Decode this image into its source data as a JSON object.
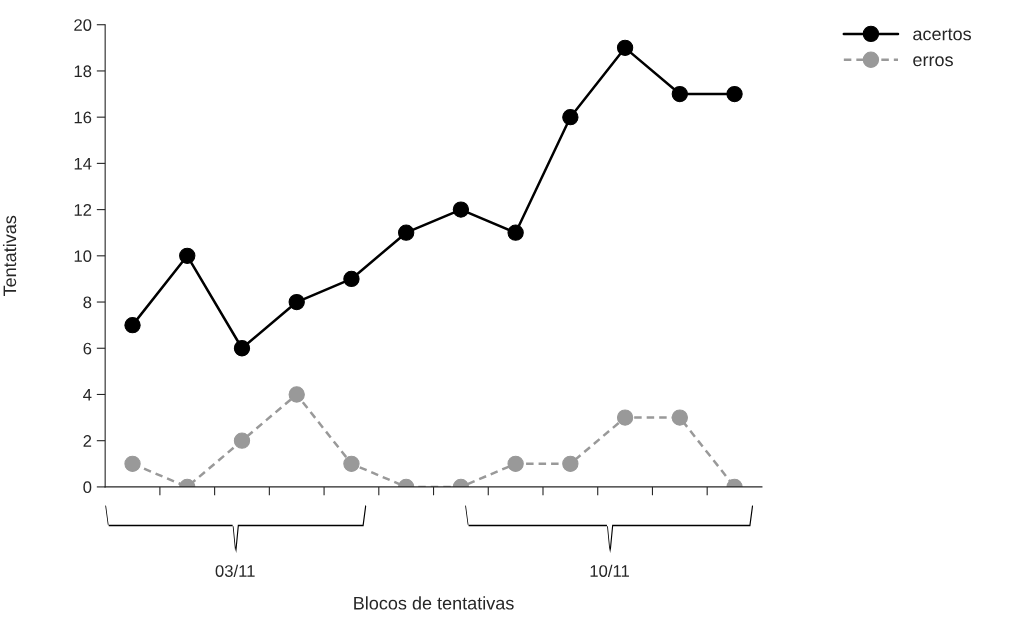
{
  "chart_data": {
    "type": "line",
    "ylabel": "Tentativas",
    "categories": [
      null,
      null,
      null,
      null,
      null,
      null,
      null,
      null,
      null,
      null,
      null,
      null
    ],
    "series": [
      {
        "name": "acertos",
        "color": "#000000",
        "line_style": "solid",
        "values": [
          7,
          10,
          6,
          8,
          9,
          11,
          12,
          11,
          16,
          19,
          17,
          17
        ]
      },
      {
        "name": "erros",
        "color": "#999999",
        "line_style": "dashed",
        "values": [
          1,
          0,
          2,
          4,
          1,
          0,
          0,
          1,
          1,
          3,
          3,
          0
        ]
      }
    ],
    "annotations": [
      "03/11",
      "10/11",
      "Blocos de tentativas"
    ],
    "ylim": [
      0,
      20
    ],
    "yticks": [
      0,
      2,
      4,
      6,
      8,
      10,
      12,
      14,
      16,
      18,
      20
    ],
    "marker": "circle",
    "grid": false,
    "legend": "top right"
  }
}
